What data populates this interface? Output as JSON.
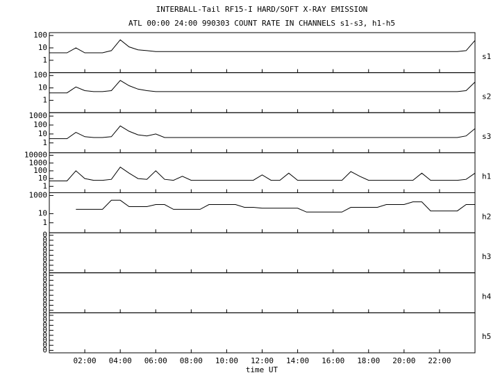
{
  "figure": {
    "title": "INTERBALL-Tail RF15-I HARD/SOFT X-RAY EMISSION",
    "subtitle": "ATL 00:00 24:00 990303  COUNT RATE IN CHANNELS s1-s3, h1-h5",
    "xlabel": "time UT",
    "xlim": [
      0,
      24
    ],
    "xticks": [
      {
        "value": 2,
        "label": "02:00"
      },
      {
        "value": 4,
        "label": "04:00"
      },
      {
        "value": 6,
        "label": "06:00"
      },
      {
        "value": 8,
        "label": "08:00"
      },
      {
        "value": 10,
        "label": "10:00"
      },
      {
        "value": 12,
        "label": "12:00"
      },
      {
        "value": 14,
        "label": "14:00"
      },
      {
        "value": 16,
        "label": "16:00"
      },
      {
        "value": 18,
        "label": "18:00"
      },
      {
        "value": 20,
        "label": "20:00"
      },
      {
        "value": 22,
        "label": "22:00"
      }
    ],
    "x": [
      0,
      0.5,
      1,
      1.5,
      2,
      2.5,
      3,
      3.5,
      4,
      4.5,
      5,
      5.5,
      6,
      6.5,
      7,
      7.5,
      8,
      8.5,
      9,
      9.5,
      10,
      10.5,
      11,
      11.5,
      12,
      12.5,
      13,
      13.5,
      14,
      14.5,
      15,
      15.5,
      16,
      16.5,
      17,
      17.5,
      18,
      18.5,
      19,
      19.5,
      20,
      20.5,
      21,
      21.5,
      22,
      22.5,
      23,
      23.5,
      24
    ]
  },
  "chart_data": [
    {
      "type": "line",
      "label": "s1",
      "log": true,
      "ylim": [
        0.1,
        170
      ],
      "yticks": [
        1,
        10,
        100
      ],
      "series": [
        {
          "color": "#000000",
          "values": [
            4,
            4,
            4,
            10,
            4,
            4,
            4,
            6,
            45,
            12,
            7,
            6,
            5,
            5,
            5,
            5,
            5,
            5,
            5,
            5,
            5,
            5,
            5,
            5,
            5,
            5,
            5,
            5,
            5,
            5,
            5,
            5,
            5,
            5,
            5,
            5,
            5,
            5,
            5,
            5,
            5,
            5,
            5,
            5,
            5,
            5,
            5,
            6,
            40
          ]
        }
      ]
    },
    {
      "type": "line",
      "label": "s2",
      "log": true,
      "ylim": [
        0.1,
        170
      ],
      "yticks": [
        1,
        10,
        100
      ],
      "series": [
        {
          "color": "#000000",
          "values": [
            4,
            4,
            4,
            12,
            6,
            5,
            5,
            6,
            40,
            15,
            8,
            6,
            5,
            5,
            5,
            5,
            5,
            5,
            5,
            5,
            5,
            5,
            5,
            5,
            5,
            5,
            5,
            5,
            5,
            5,
            5,
            5,
            5,
            5,
            5,
            5,
            5,
            5,
            5,
            5,
            5,
            5,
            5,
            5,
            5,
            5,
            5,
            6,
            30
          ]
        }
      ]
    },
    {
      "type": "line",
      "label": "s3",
      "log": true,
      "ylim": [
        0.08,
        2400
      ],
      "yticks": [
        1,
        10,
        100,
        1000
      ],
      "series": [
        {
          "color": "#000000",
          "values": [
            3,
            3,
            3,
            15,
            5,
            4,
            4,
            5,
            80,
            20,
            8,
            6,
            10,
            4,
            4,
            4,
            4,
            4,
            4,
            4,
            4,
            4,
            4,
            4,
            4,
            4,
            4,
            4,
            4,
            4,
            4,
            4,
            4,
            4,
            4,
            4,
            4,
            4,
            4,
            4,
            4,
            4,
            4,
            4,
            4,
            4,
            4,
            6,
            40
          ]
        }
      ]
    },
    {
      "type": "line",
      "label": "h1",
      "log": true,
      "ylim": [
        0.15,
        21500
      ],
      "yticks": [
        1,
        10,
        100,
        1000,
        10000
      ],
      "series": [
        {
          "color": "#000000",
          "values": [
            5,
            5,
            5,
            100,
            10,
            6,
            6,
            8,
            300,
            50,
            10,
            8,
            100,
            8,
            6,
            20,
            6,
            6,
            6,
            6,
            6,
            6,
            6,
            6,
            30,
            6,
            6,
            50,
            6,
            6,
            6,
            6,
            6,
            6,
            80,
            20,
            6,
            6,
            6,
            6,
            6,
            6,
            50,
            6,
            6,
            6,
            6,
            8,
            50
          ]
        }
      ]
    },
    {
      "type": "line",
      "label": "h2",
      "log": true,
      "ylim": [
        0.08,
        2000
      ],
      "yticks": [
        1,
        10,
        1000
      ],
      "series": [
        {
          "color": "#000000",
          "values": [
            null,
            null,
            null,
            30,
            30,
            30,
            30,
            300,
            300,
            60,
            60,
            60,
            100,
            100,
            30,
            30,
            30,
            30,
            100,
            100,
            100,
            100,
            50,
            50,
            40,
            40,
            40,
            40,
            40,
            15,
            15,
            15,
            15,
            15,
            50,
            50,
            50,
            50,
            100,
            100,
            100,
            200,
            200,
            20,
            20,
            20,
            20,
            100,
            100
          ]
        }
      ]
    },
    {
      "type": "line",
      "label": "h3",
      "log": false,
      "ylim": [
        0,
        8
      ],
      "yticks": [
        {
          "value": 0.5,
          "label": "0"
        },
        {
          "value": 1.5,
          "label": "0"
        },
        {
          "value": 2.5,
          "label": "0"
        },
        {
          "value": 3.5,
          "label": "0"
        },
        {
          "value": 4.5,
          "label": "0"
        },
        {
          "value": 5.5,
          "label": "0"
        },
        {
          "value": 6.5,
          "label": "0"
        },
        {
          "value": 7.5,
          "label": "0"
        }
      ],
      "series": []
    },
    {
      "type": "line",
      "label": "h4",
      "log": false,
      "ylim": [
        0,
        8
      ],
      "yticks": [
        {
          "value": 0.5,
          "label": "0"
        },
        {
          "value": 1.5,
          "label": "0"
        },
        {
          "value": 2.5,
          "label": "0"
        },
        {
          "value": 3.5,
          "label": "0"
        },
        {
          "value": 4.5,
          "label": "0"
        },
        {
          "value": 5.5,
          "label": "0"
        },
        {
          "value": 6.5,
          "label": "0"
        },
        {
          "value": 7.5,
          "label": "0"
        }
      ],
      "series": []
    },
    {
      "type": "line",
      "label": "h5",
      "log": false,
      "ylim": [
        0,
        8
      ],
      "yticks": [
        {
          "value": 0.5,
          "label": "0"
        },
        {
          "value": 1.5,
          "label": "0"
        },
        {
          "value": 2.5,
          "label": "0"
        },
        {
          "value": 3.5,
          "label": "0"
        },
        {
          "value": 4.5,
          "label": "0"
        },
        {
          "value": 5.5,
          "label": "0"
        },
        {
          "value": 6.5,
          "label": "0"
        },
        {
          "value": 7.5,
          "label": "0"
        }
      ],
      "series": []
    }
  ]
}
